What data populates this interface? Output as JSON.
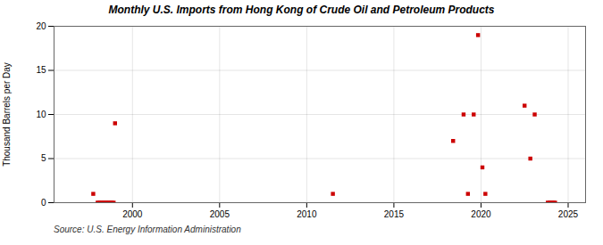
{
  "chart_data": {
    "type": "scatter",
    "title": "Monthly U.S. Imports from Hong Kong of Crude Oil and Petroleum Products",
    "ylabel": "Thousand Barrels per Day",
    "source": "Source: U.S. Energy Information Administration",
    "color": "#cc0000",
    "marker": "square",
    "grid": true,
    "xlim": [
      1995.5,
      2026.0
    ],
    "ylim": [
      0,
      20
    ],
    "xticks": [
      2000,
      2005,
      2010,
      2015,
      2020,
      2025
    ],
    "yticks": [
      0,
      5,
      10,
      15,
      20
    ],
    "x": [
      1997.75,
      1998.0,
      1998.08,
      1998.17,
      1998.25,
      1998.33,
      1998.42,
      1998.5,
      1998.58,
      1998.67,
      1998.75,
      1998.83,
      1998.92,
      1999.0,
      2011.5,
      2018.4,
      2019.0,
      2019.25,
      2019.58,
      2019.83,
      2020.08,
      2020.25,
      2022.5,
      2022.83,
      2023.08,
      2023.83,
      2023.92,
      2024.0,
      2024.08,
      2024.17,
      2024.25
    ],
    "values": [
      1.0,
      0.0,
      0.0,
      0.0,
      0.0,
      0.0,
      0.0,
      0.0,
      0.0,
      0.0,
      0.0,
      0.0,
      0.0,
      9.0,
      1.0,
      7.0,
      10.0,
      1.0,
      10.0,
      19.0,
      4.0,
      1.0,
      11.0,
      5.0,
      10.0,
      0.0,
      0.0,
      0.0,
      0.0,
      0.0,
      0.0
    ]
  }
}
